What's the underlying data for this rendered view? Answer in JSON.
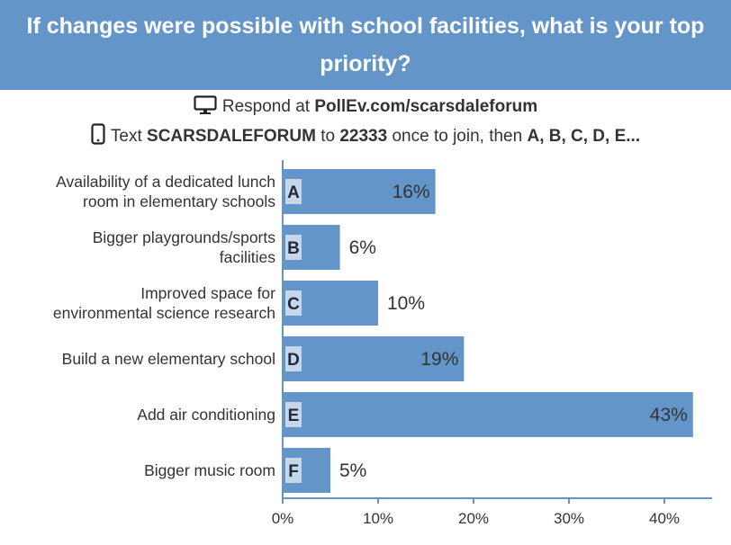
{
  "header": {
    "title": "If changes were possible with school facilities, what is your top priority?"
  },
  "respond": {
    "web_prefix": "Respond at",
    "web_url": "PollEv.com/scarsdaleforum",
    "text_prefix": "Text",
    "text_code": "SCARSDALEFORUM",
    "text_to": "to",
    "text_number": "22333",
    "text_middle": "once to join, then",
    "text_options": "A, B, C, D, E...",
    "icons": [
      "monitor-icon",
      "phone-icon"
    ]
  },
  "chart_data": {
    "type": "bar",
    "orientation": "horizontal",
    "categories": [
      [
        "Availability of a dedicated lunch",
        "room in elementary schools"
      ],
      [
        "Bigger playgrounds/sports",
        "facilities"
      ],
      [
        "Improved space for",
        "environmental science research"
      ],
      [
        "Build a new elementary school"
      ],
      [
        "Add air conditioning"
      ],
      [
        "Bigger music room"
      ]
    ],
    "letters": [
      "A",
      "B",
      "C",
      "D",
      "E",
      "F"
    ],
    "values": [
      16,
      6,
      10,
      19,
      43,
      5
    ],
    "value_labels": [
      "16%",
      "6%",
      "10%",
      "19%",
      "43%",
      "5%"
    ],
    "xticks": [
      "0%",
      "10%",
      "20%",
      "30%",
      "40%"
    ],
    "xlim": [
      0,
      43
    ],
    "grid": false,
    "bar_color": "#6495c9"
  }
}
